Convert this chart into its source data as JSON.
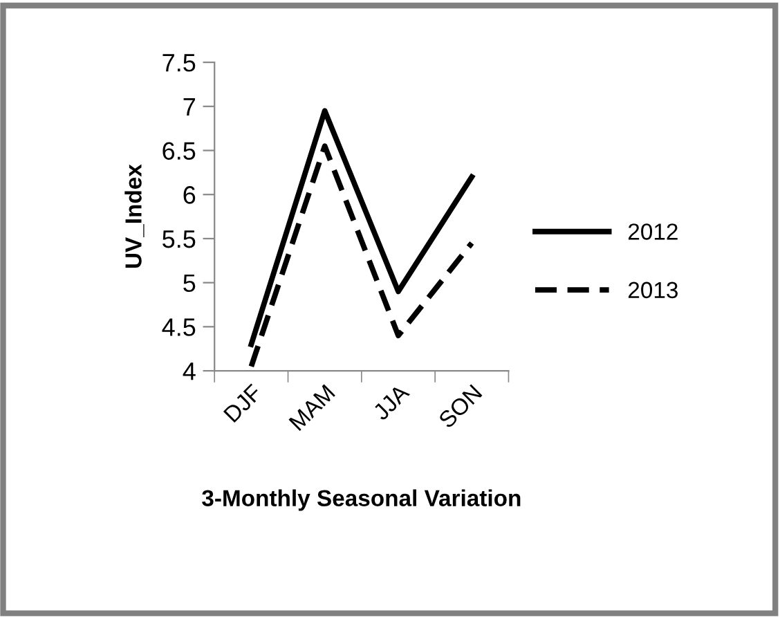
{
  "chart_data": {
    "type": "line",
    "xlabel": "3-Monthly Seasonal Variation",
    "ylabel": "UV_Index",
    "categories": [
      "DJF",
      "MAM",
      "JJA",
      "SON"
    ],
    "series": [
      {
        "name": "2012",
        "color": "#000000",
        "line_style": "solid",
        "values": [
          4.3,
          6.95,
          4.9,
          6.2
        ]
      },
      {
        "name": "2013",
        "color": "#000000",
        "line_style": "dashed",
        "values": [
          4.05,
          6.55,
          4.4,
          5.45
        ]
      }
    ],
    "ylim": [
      4,
      7.5
    ],
    "yticks": [
      4,
      4.5,
      5,
      5.5,
      6,
      6.5,
      7,
      7.5
    ],
    "grid": false,
    "legend": "right",
    "marker": "none"
  }
}
